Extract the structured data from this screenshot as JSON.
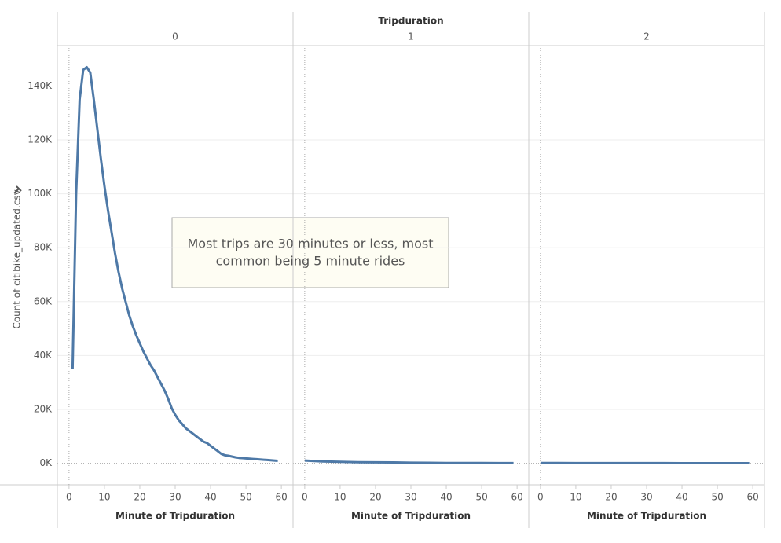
{
  "chart_data": {
    "type": "line",
    "title": "Tripduration",
    "y_label": "Count of citibike_updated.csv",
    "annotation": [
      "Most trips are 30 minutes or less, most",
      "common being 5 minute rides"
    ],
    "color": "#4e79a7",
    "grid": true,
    "ylim": [
      -8000,
      155000
    ],
    "yticks": [
      {
        "value": 0,
        "label": "0K"
      },
      {
        "value": 20000,
        "label": "20K"
      },
      {
        "value": 40000,
        "label": "40K"
      },
      {
        "value": 60000,
        "label": "60K"
      },
      {
        "value": 80000,
        "label": "80K"
      },
      {
        "value": 100000,
        "label": "100K"
      },
      {
        "value": 120000,
        "label": "120K"
      },
      {
        "value": 140000,
        "label": "140K"
      }
    ],
    "xlim": [
      -3.3,
      63.3
    ],
    "xticks": [
      0,
      10,
      20,
      30,
      40,
      50,
      60
    ],
    "panels": [
      {
        "name": "0",
        "x_label": "Minute of Tripduration",
        "x": [
          1,
          2,
          3,
          4,
          5,
          6,
          7,
          8,
          9,
          10,
          11,
          12,
          13,
          14,
          15,
          16,
          17,
          18,
          19,
          20,
          21,
          22,
          23,
          24,
          25,
          26,
          27,
          28,
          29,
          30,
          31,
          32,
          33,
          34,
          35,
          36,
          37,
          38,
          39,
          40,
          41,
          42,
          43,
          44,
          45,
          46,
          47,
          48,
          49,
          50,
          51,
          52,
          53,
          54,
          55,
          56,
          57,
          58,
          59
        ],
        "values": [
          35000,
          100000,
          135000,
          146000,
          147000,
          145000,
          135000,
          124000,
          113000,
          103000,
          94000,
          86000,
          78000,
          71000,
          65000,
          60000,
          55000,
          51000,
          47500,
          44500,
          41500,
          39000,
          36500,
          34500,
          32000,
          29500,
          27000,
          24000,
          20500,
          18000,
          16000,
          14500,
          13000,
          12000,
          11000,
          10000,
          9000,
          8000,
          7500,
          6500,
          5500,
          4500,
          3500,
          3000,
          2800,
          2500,
          2200,
          2000,
          1900,
          1800,
          1700,
          1600,
          1500,
          1400,
          1300,
          1200,
          1100,
          1000,
          900
        ]
      },
      {
        "name": "1",
        "x_label": "Minute of Tripduration",
        "x": [
          0,
          5,
          10,
          15,
          20,
          25,
          30,
          35,
          40,
          45,
          50,
          55,
          59
        ],
        "values": [
          1000,
          700,
          550,
          400,
          350,
          300,
          200,
          150,
          120,
          100,
          80,
          60,
          50
        ]
      },
      {
        "name": "2",
        "x_label": "Minute of Tripduration",
        "x": [
          0,
          5,
          10,
          15,
          20,
          25,
          30,
          35,
          40,
          45,
          50,
          55,
          59
        ],
        "values": [
          80,
          70,
          60,
          55,
          50,
          45,
          40,
          35,
          30,
          25,
          20,
          15,
          10
        ]
      }
    ]
  }
}
